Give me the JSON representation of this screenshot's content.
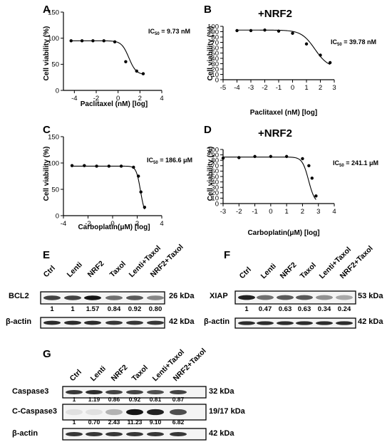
{
  "panels": {
    "A": {
      "letter": "A",
      "xlabel": "Paclitaxel (nM) [log]",
      "ylabel": "Cell viability (%)",
      "ic50_prefix": "IC",
      "ic50_sub": "50",
      "ic50_value": " = 9.73 nM"
    },
    "B": {
      "letter": "B",
      "header": "+NRF2",
      "xlabel": "Paclitaxel (nM) [log]",
      "ylabel": "Cell viability (%)",
      "ic50_prefix": "IC",
      "ic50_sub": "50",
      "ic50_value": " = 39.78 nM"
    },
    "C": {
      "letter": "C",
      "xlabel": "Carboplatin(μM) [log]",
      "ylabel": "Cell viability (%)",
      "ic50_prefix": "IC",
      "ic50_sub": "50",
      "ic50_value": " = 186.6 μM"
    },
    "D": {
      "letter": "D",
      "header": "+NRF2",
      "xlabel": "Carboplatin(μM) [log]",
      "ylabel": "Cell viability (%)",
      "ic50_prefix": "IC",
      "ic50_sub": "50",
      "ic50_value": " = 241.1 μM"
    },
    "E": {
      "letter": "E",
      "lanes": [
        "Ctrl",
        "Lenti",
        "NRF2",
        "Taxol",
        "Lenti+Taxol",
        "NRF2+Taxol"
      ],
      "rows": [
        {
          "label": "BCL2",
          "kda": "26 kDa",
          "quant": [
            "1",
            "1",
            "1.57",
            "0.84",
            "0.92",
            "0.80"
          ],
          "intensity": [
            0.75,
            0.75,
            0.95,
            0.55,
            0.65,
            0.45
          ]
        },
        {
          "label": "β-actin",
          "kda": "42 kDa",
          "quant": [],
          "intensity": [
            0.85,
            0.85,
            0.85,
            0.8,
            0.8,
            0.8
          ]
        }
      ]
    },
    "F": {
      "letter": "F",
      "lanes": [
        "Ctrl",
        "Lenti",
        "NRF2",
        "Taxol",
        "Lenti+Taxol",
        "NRF2+Taxol"
      ],
      "rows": [
        {
          "label": "XIAP",
          "kda": "53 kDa",
          "quant": [
            "1",
            "0.47",
            "0.63",
            "0.63",
            "0.34",
            "0.24"
          ],
          "intensity": [
            0.9,
            0.55,
            0.65,
            0.65,
            0.4,
            0.3
          ]
        },
        {
          "label": "β-actin",
          "kda": "42 kDa",
          "quant": [],
          "intensity": [
            0.85,
            0.85,
            0.85,
            0.85,
            0.85,
            0.85
          ]
        }
      ]
    },
    "G": {
      "letter": "G",
      "lanes": [
        "Ctrl",
        "Lenti",
        "NRF2",
        "Taxol",
        "Lenti+Taxol",
        "NRF2+Taxol"
      ],
      "rows": [
        {
          "label": "Caspase3",
          "kda": "32 kDa",
          "quant": [
            "1",
            "1.19",
            "0.86",
            "0.92",
            "0.81",
            "0.87"
          ],
          "intensity": [
            0.8,
            0.85,
            0.75,
            0.75,
            0.7,
            0.75
          ]
        },
        {
          "label": "C-Caspase3",
          "kda": "19/17 kDa",
          "quant": [
            "1",
            "0.70",
            "2.43",
            "11.23",
            "9.10",
            "6.82"
          ],
          "intensity": [
            0.05,
            0.05,
            0.25,
            0.95,
            0.9,
            0.7
          ]
        },
        {
          "label": "β-actin",
          "kda": "42 kDa",
          "quant": [],
          "intensity": [
            0.8,
            0.8,
            0.8,
            0.8,
            0.8,
            0.8
          ]
        }
      ]
    }
  },
  "chart_data": [
    {
      "type": "scatter",
      "panel": "A",
      "xlabel": "Paclitaxel (nM) [log]",
      "ylabel": "Cell viability (%)",
      "xlim": [
        -5,
        4
      ],
      "ylim": [
        0,
        150
      ],
      "xticks": [
        -4,
        -2,
        0,
        2,
        4
      ],
      "yticks": [
        0,
        50,
        100,
        150
      ],
      "x": [
        -4.3,
        -3.3,
        -2.3,
        -1.3,
        -0.3,
        0.7,
        1.7,
        2.3
      ],
      "y": [
        95,
        95,
        95,
        95,
        93,
        55,
        37,
        32
      ],
      "fit": {
        "top": 95,
        "bottom": 30,
        "logIC50": 0.988,
        "hill": 1.3
      }
    },
    {
      "type": "scatter",
      "panel": "B",
      "xlabel": "Paclitaxel (nM) [log]",
      "ylabel": "Cell viability (%)",
      "xlim": [
        -5,
        3
      ],
      "ylim": [
        0,
        100
      ],
      "xticks": [
        -5,
        -4,
        -3,
        -2,
        -1,
        0,
        1,
        2,
        3
      ],
      "yticks": [
        0,
        10,
        20,
        30,
        40,
        50,
        60,
        70,
        80,
        90,
        100
      ],
      "x": [
        -4,
        -3,
        -2,
        -1,
        0,
        1,
        2,
        2.7
      ],
      "y": [
        92,
        92,
        93,
        91,
        87,
        67,
        46,
        32
      ],
      "fit": {
        "top": 93,
        "bottom": 22,
        "logIC50": 1.6,
        "hill": 0.9
      }
    },
    {
      "type": "scatter",
      "panel": "C",
      "xlabel": "Carboplatin(μM) [log]",
      "ylabel": "Cell viability (%)",
      "xlim": [
        -4,
        4
      ],
      "ylim": [
        0,
        150
      ],
      "xticks": [
        -4,
        -2,
        0,
        2,
        4
      ],
      "yticks": [
        0,
        50,
        100,
        150
      ],
      "x": [
        -3.3,
        -2.3,
        -1.3,
        -0.3,
        0.7,
        1.7,
        2.1,
        2.3,
        2.6
      ],
      "y": [
        95,
        95,
        94,
        94,
        94,
        92,
        75,
        45,
        16
      ],
      "fit": {
        "top": 94,
        "bottom": 0,
        "logIC50": 2.271,
        "hill": 2.5
      }
    },
    {
      "type": "scatter",
      "panel": "D",
      "xlabel": "Carboplatin(μM) [log]",
      "ylabel": "Cell viability (%)",
      "xlim": [
        -3,
        4
      ],
      "ylim": [
        0,
        100
      ],
      "xticks": [
        -3,
        -2,
        -1,
        0,
        1,
        2,
        3,
        4
      ],
      "yticks": [
        0,
        10,
        20,
        30,
        40,
        50,
        60,
        70,
        80,
        90,
        100
      ],
      "x": [
        -3,
        -2,
        -1,
        0,
        1,
        2,
        2.4,
        2.6,
        2.85
      ],
      "y": [
        84,
        85,
        87,
        87,
        87,
        83,
        70,
        47,
        14
      ],
      "fit": {
        "top": 86,
        "bottom": 0,
        "logIC50": 2.382,
        "hill": 2.2
      }
    }
  ]
}
